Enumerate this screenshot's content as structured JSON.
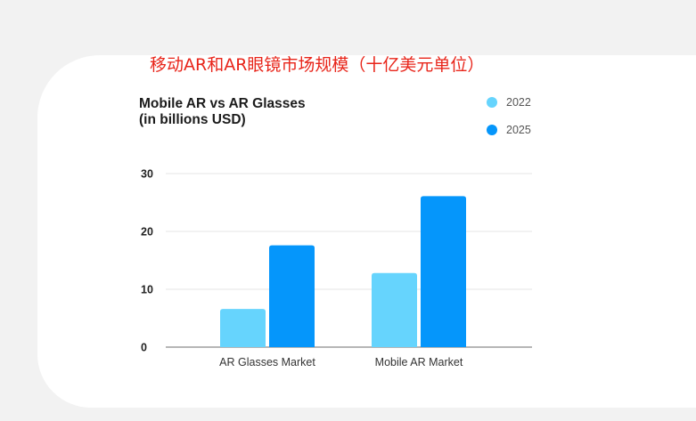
{
  "overlay_title": "移动AR和AR眼镜市场规模（十亿美元单位）",
  "chart_data": {
    "type": "bar",
    "title_line1": "Mobile AR vs AR Glasses",
    "title_line2": "(in billions USD)",
    "categories": [
      "AR Glasses Market",
      "Mobile AR Market"
    ],
    "series": [
      {
        "name": "2022",
        "color": "#66d4fd",
        "values": [
          6.6,
          12.8
        ]
      },
      {
        "name": "2025",
        "color": "#0596fb",
        "values": [
          17.6,
          26.1
        ]
      }
    ],
    "yticks": [
      0,
      10,
      20,
      30
    ],
    "ylim": [
      0,
      30
    ],
    "grid": true,
    "legend_position": "top-right"
  }
}
